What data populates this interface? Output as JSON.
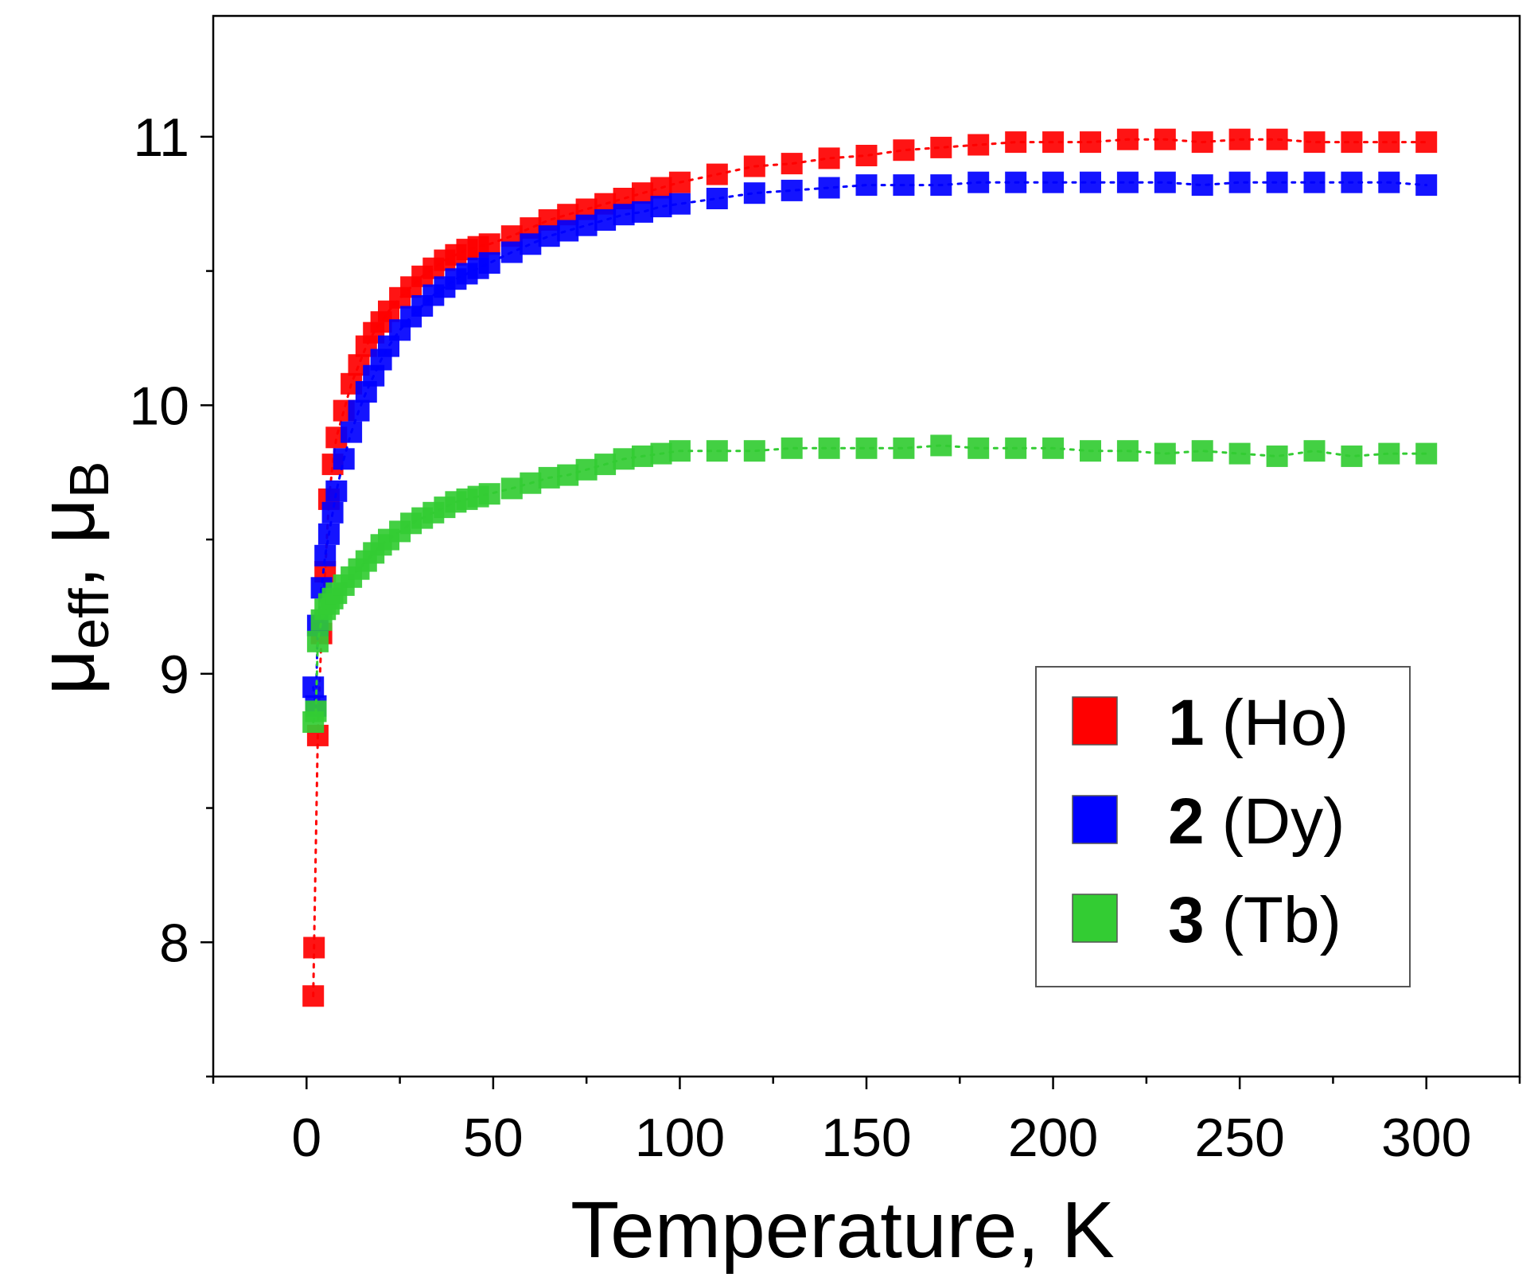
{
  "chart_data": {
    "type": "scatter",
    "title": "",
    "xlabel": "Temperature, K",
    "ylabel": {
      "base": "μ",
      "sub": "eff",
      "sep": ", ",
      "base2": "μ",
      "sub2": "B"
    },
    "xlim": [
      -25,
      325
    ],
    "ylim": [
      7.5,
      11.45
    ],
    "xticks": [
      0,
      50,
      100,
      150,
      200,
      250,
      300
    ],
    "yticks": [
      8,
      9,
      10,
      11
    ],
    "grid": false,
    "legend_position": "bottom-right",
    "series": [
      {
        "name": "1 (Ho)",
        "num": "1",
        "label": "(Ho)",
        "color": "#ff0000",
        "x": [
          1.8,
          2,
          3,
          4,
          5,
          6,
          7,
          8,
          10,
          12,
          14,
          16,
          18,
          20,
          22,
          25,
          28,
          31,
          34,
          37,
          40,
          43,
          46,
          49,
          55,
          60,
          65,
          70,
          75,
          80,
          85,
          90,
          95,
          100,
          110,
          120,
          130,
          140,
          150,
          160,
          170,
          180,
          190,
          200,
          210,
          220,
          230,
          240,
          250,
          260,
          270,
          280,
          290,
          300
        ],
        "y": [
          7.8,
          7.98,
          8.77,
          9.15,
          9.38,
          9.65,
          9.78,
          9.88,
          9.98,
          10.08,
          10.15,
          10.22,
          10.27,
          10.31,
          10.35,
          10.4,
          10.44,
          10.48,
          10.51,
          10.54,
          10.56,
          10.58,
          10.59,
          10.6,
          10.63,
          10.66,
          10.69,
          10.71,
          10.73,
          10.75,
          10.77,
          10.79,
          10.81,
          10.83,
          10.86,
          10.89,
          10.9,
          10.92,
          10.93,
          10.95,
          10.96,
          10.97,
          10.98,
          10.98,
          10.98,
          10.99,
          10.99,
          10.98,
          10.99,
          10.99,
          10.98,
          10.98,
          10.98,
          10.98
        ]
      },
      {
        "name": "2 (Dy)",
        "num": "2",
        "label": "(Dy)",
        "color": "#0000ff",
        "x": [
          1.8,
          2.5,
          3,
          4,
          5,
          6,
          7,
          8,
          10,
          12,
          14,
          16,
          18,
          20,
          22,
          25,
          28,
          31,
          34,
          37,
          40,
          43,
          46,
          49,
          55,
          60,
          65,
          70,
          75,
          80,
          85,
          90,
          95,
          100,
          110,
          120,
          130,
          140,
          150,
          160,
          170,
          180,
          190,
          200,
          210,
          220,
          230,
          240,
          250,
          260,
          270,
          280,
          290,
          300
        ],
        "y": [
          8.95,
          8.88,
          9.18,
          9.32,
          9.44,
          9.52,
          9.6,
          9.68,
          9.8,
          9.9,
          9.98,
          10.05,
          10.11,
          10.17,
          10.22,
          10.28,
          10.33,
          10.37,
          10.41,
          10.44,
          10.47,
          10.49,
          10.51,
          10.53,
          10.57,
          10.6,
          10.63,
          10.65,
          10.67,
          10.69,
          10.71,
          10.72,
          10.74,
          10.75,
          10.77,
          10.79,
          10.8,
          10.81,
          10.82,
          10.82,
          10.82,
          10.83,
          10.83,
          10.83,
          10.83,
          10.83,
          10.83,
          10.82,
          10.83,
          10.83,
          10.83,
          10.83,
          10.83,
          10.82
        ]
      },
      {
        "name": "3 (Tb)",
        "num": "3",
        "label": "(Tb)",
        "color": "#33cc33",
        "x": [
          1.8,
          2.5,
          3,
          4,
          5,
          6,
          7,
          8,
          10,
          12,
          14,
          16,
          18,
          20,
          22,
          25,
          28,
          31,
          34,
          37,
          40,
          43,
          46,
          49,
          55,
          60,
          65,
          70,
          75,
          80,
          85,
          90,
          95,
          100,
          110,
          120,
          130,
          140,
          150,
          160,
          170,
          180,
          190,
          200,
          210,
          220,
          230,
          240,
          250,
          260,
          270,
          280,
          290,
          300
        ],
        "y": [
          8.82,
          8.86,
          9.12,
          9.2,
          9.24,
          9.26,
          9.28,
          9.3,
          9.33,
          9.36,
          9.39,
          9.42,
          9.45,
          9.48,
          9.5,
          9.53,
          9.56,
          9.58,
          9.6,
          9.62,
          9.64,
          9.65,
          9.66,
          9.67,
          9.69,
          9.71,
          9.73,
          9.74,
          9.76,
          9.78,
          9.8,
          9.81,
          9.82,
          9.83,
          9.83,
          9.83,
          9.84,
          9.84,
          9.84,
          9.84,
          9.85,
          9.84,
          9.84,
          9.84,
          9.83,
          9.83,
          9.82,
          9.83,
          9.82,
          9.81,
          9.83,
          9.81,
          9.82,
          9.82
        ]
      }
    ]
  }
}
